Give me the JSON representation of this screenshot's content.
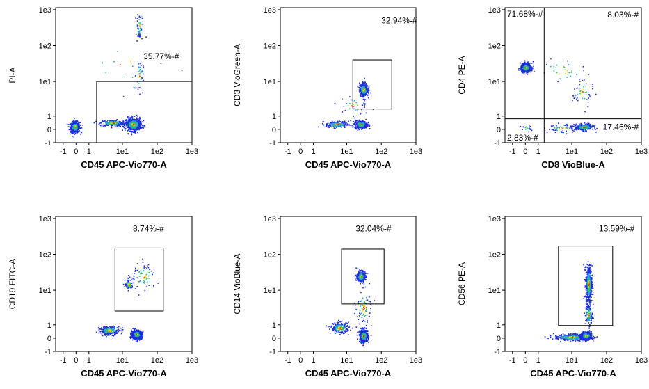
{
  "colors": {
    "density_low": "#1c2fd6",
    "density_mid": "#2aa7c9",
    "density_high1": "#36c25a",
    "density_high2": "#e8e000",
    "density_peak": "#e82a00",
    "gate": "#000000"
  },
  "tick_labels": {
    "x": [
      "-1",
      "0",
      "1",
      "1e1",
      "1e2",
      "1e3"
    ],
    "y": [
      "-1",
      "0",
      "1",
      "1e1",
      "1e2",
      "1e3"
    ]
  },
  "chart_data": [
    {
      "type": "scatter",
      "xlabel": "CD45 APC-Vio770-A",
      "ylabel": "PI-A",
      "axis_scale": "biexponential (-1 to 1e3)",
      "populations": [
        {
          "x": -0.1,
          "y": 0.2,
          "n": 550,
          "sx": 0.09,
          "sy": 0.1
        },
        {
          "x": 5,
          "y": 0.5,
          "n": 250,
          "sx": 0.25,
          "sy": 0.06
        },
        {
          "x": 20,
          "y": 0.4,
          "n": 600,
          "sx": 0.15,
          "sy": 0.12
        },
        {
          "x": 30,
          "y": 350,
          "n": 60,
          "sx": 0.05,
          "sy": 0.25
        },
        {
          "x": 30,
          "y": 15,
          "n": 40,
          "sx": 0.07,
          "sy": 0.3
        },
        {
          "x": 10,
          "y": 30,
          "n": 20,
          "sx": 0.8,
          "sy": 0.8
        }
      ],
      "gates": [
        {
          "type": "rect",
          "x": [
            1.7,
            1000
          ],
          "y": [
            -1,
            10
          ],
          "label": "35.77%-#",
          "label_x": 40,
          "label_y": 50
        }
      ]
    },
    {
      "type": "scatter",
      "xlabel": "CD45 APC-Vio770-A",
      "ylabel": "CD3 VioGreen-A",
      "axis_scale": "biexponential (-1 to 1e3)",
      "populations": [
        {
          "x": 5,
          "y": 0.4,
          "n": 180,
          "sx": 0.22,
          "sy": 0.06
        },
        {
          "x": 25,
          "y": 0.4,
          "n": 450,
          "sx": 0.12,
          "sy": 0.07
        },
        {
          "x": 30,
          "y": 6,
          "n": 450,
          "sx": 0.08,
          "sy": 0.12
        },
        {
          "x": 15,
          "y": 2,
          "n": 40,
          "sx": 0.3,
          "sy": 0.2
        }
      ],
      "gates": [
        {
          "type": "rect",
          "x": [
            15,
            200
          ],
          "y": [
            1.6,
            40
          ],
          "label": "32.94%-#",
          "label_x": 100,
          "label_y": 500
        }
      ]
    },
    {
      "type": "scatter",
      "xlabel": "CD8 VioBlue-A",
      "ylabel": "CD4 PE-A",
      "axis_scale": "biexponential (-1 to 1e3)",
      "populations": [
        {
          "x": 0,
          "y": 25,
          "n": 450,
          "sx": 0.1,
          "sy": 0.08
        },
        {
          "x": 22,
          "y": 0.2,
          "n": 300,
          "sx": 0.18,
          "sy": 0.06
        },
        {
          "x": 20,
          "y": 5,
          "n": 50,
          "sx": 0.2,
          "sy": 0.3
        },
        {
          "x": 5,
          "y": 20,
          "n": 30,
          "sx": 0.5,
          "sy": 0.3
        },
        {
          "x": 0,
          "y": 0.1,
          "n": 20,
          "sx": 0.1,
          "sy": 0.06
        },
        {
          "x": 5,
          "y": 0.1,
          "n": 60,
          "sx": 0.3,
          "sy": 0.08
        }
      ],
      "gates": [
        {
          "type": "quadrant",
          "x_split": 1.5,
          "y_split": 0.8,
          "labels": [
            {
              "text": "71.68%-#",
              "pos": "top-left"
            },
            {
              "text": "8.03%-#",
              "pos": "top-right"
            },
            {
              "text": "17.46%-#",
              "pos": "bottom-right"
            },
            {
              "text": "2.83%-#",
              "pos": "bottom-left"
            }
          ]
        }
      ]
    },
    {
      "type": "scatter",
      "xlabel": "CD45 APC-Vio770-A",
      "ylabel": "CD19 FITC-A",
      "axis_scale": "biexponential (-1 to 1e3)",
      "populations": [
        {
          "x": 4,
          "y": 0.6,
          "n": 250,
          "sx": 0.2,
          "sy": 0.08
        },
        {
          "x": 25,
          "y": 0.3,
          "n": 650,
          "sx": 0.1,
          "sy": 0.08
        },
        {
          "x": 15,
          "y": 15,
          "n": 70,
          "sx": 0.08,
          "sy": 0.1
        },
        {
          "x": 40,
          "y": 25,
          "n": 70,
          "sx": 0.25,
          "sy": 0.25
        }
      ],
      "gates": [
        {
          "type": "rect",
          "x": [
            6,
            150
          ],
          "y": [
            2.5,
            150
          ],
          "label": "8.74%-#",
          "label_x": 20,
          "label_y": 520
        }
      ]
    },
    {
      "type": "scatter",
      "xlabel": "CD45 APC-Vio770-A",
      "ylabel": "CD14 VioBlue-A",
      "axis_scale": "biexponential (-1 to 1e3)",
      "populations": [
        {
          "x": 6,
          "y": 0.8,
          "n": 220,
          "sx": 0.18,
          "sy": 0.1
        },
        {
          "x": 30,
          "y": 0.2,
          "n": 550,
          "sx": 0.08,
          "sy": 0.12
        },
        {
          "x": 25,
          "y": 25,
          "n": 350,
          "sx": 0.08,
          "sy": 0.1
        },
        {
          "x": 30,
          "y": 3,
          "n": 80,
          "sx": 0.15,
          "sy": 0.35
        }
      ],
      "gates": [
        {
          "type": "rect",
          "x": [
            7,
            120
          ],
          "y": [
            4,
            140
          ],
          "label": "32.04%-#",
          "label_x": 18,
          "label_y": 520
        }
      ]
    },
    {
      "type": "scatter",
      "xlabel": "CD45 APC-Vio770-A",
      "ylabel": "CD56 PE-A",
      "axis_scale": "biexponential (-1 to 1e3)",
      "populations": [
        {
          "x": 10,
          "y": 0.1,
          "n": 400,
          "sx": 0.35,
          "sy": 0.06
        },
        {
          "x": 25,
          "y": 0.2,
          "n": 550,
          "sx": 0.1,
          "sy": 0.07
        },
        {
          "x": 30,
          "y": 15,
          "n": 500,
          "sx": 0.06,
          "sy": 0.35
        },
        {
          "x": 30,
          "y": 2,
          "n": 120,
          "sx": 0.07,
          "sy": 0.2
        }
      ],
      "gates": [
        {
          "type": "rect",
          "x": [
            4,
            150
          ],
          "y": [
            0.95,
            170
          ],
          "label": "13.59%-#",
          "label_x": 60,
          "label_y": 520
        }
      ]
    }
  ]
}
